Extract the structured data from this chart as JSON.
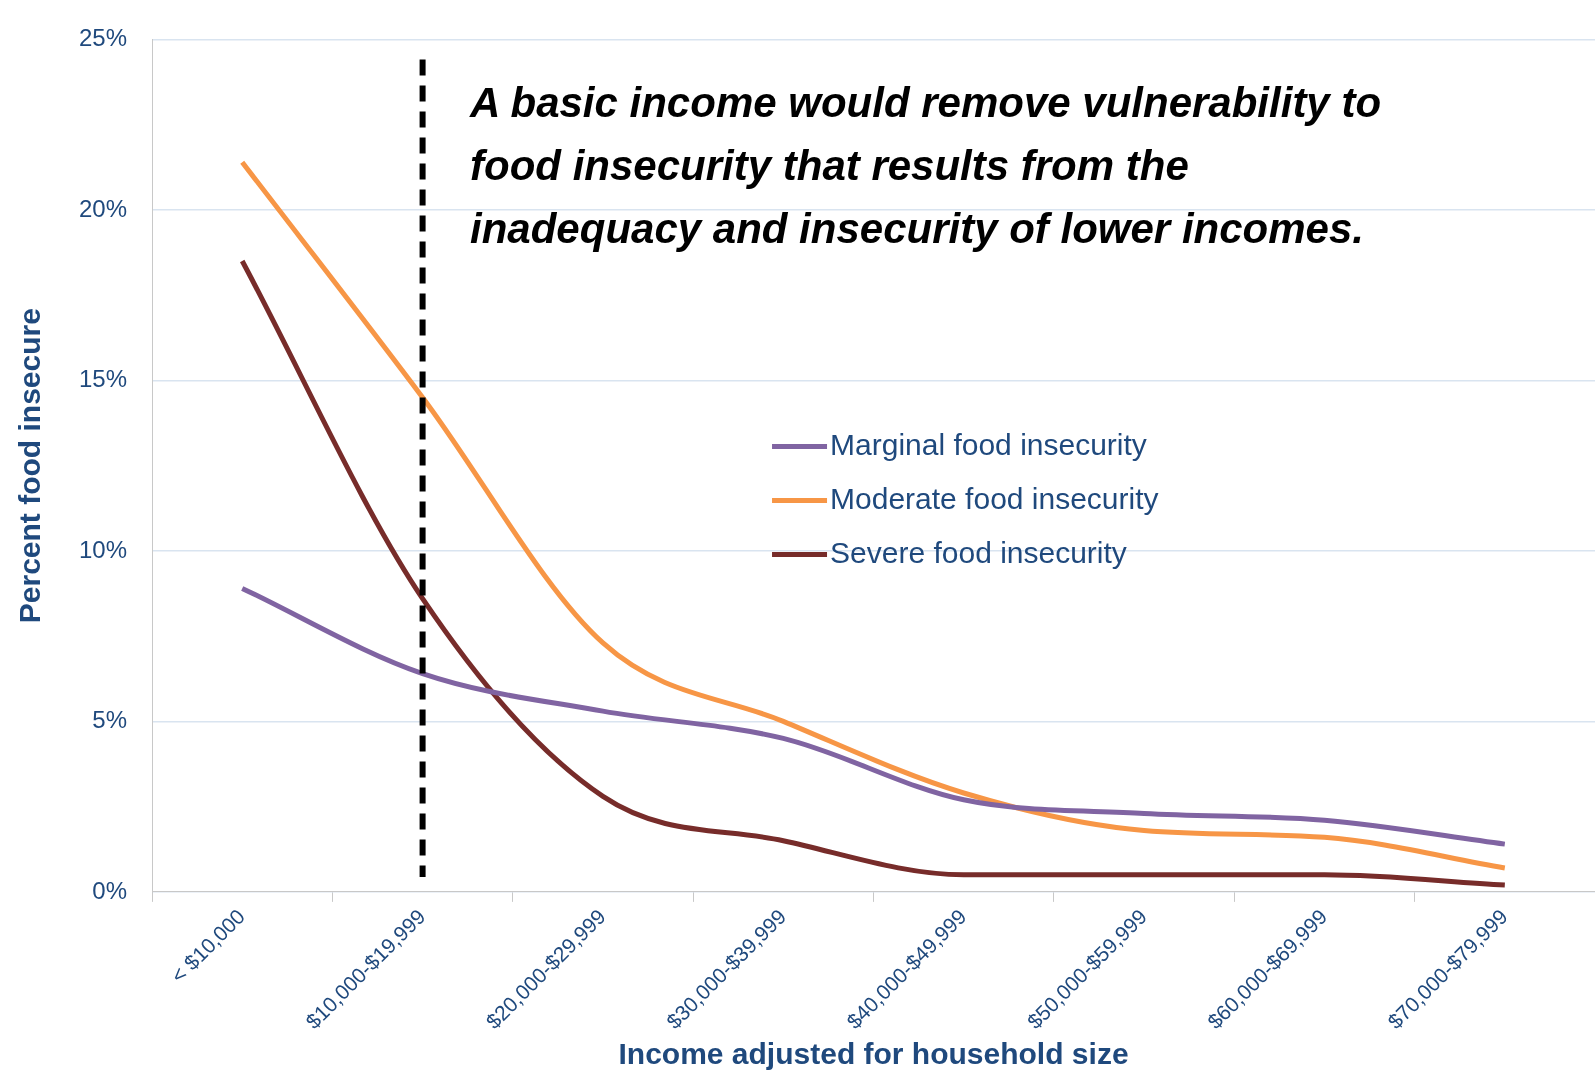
{
  "chart_data": {
    "type": "line",
    "xlabel": "Income adjusted for household size",
    "ylabel": "Percent food insecure",
    "categories": [
      "< $10,000",
      "$10,000-$19,999",
      "$20,000-$29,999",
      "$30,000-$39,999",
      "$40,000-$49,999",
      "$50,000-$59,999",
      "$60,000-$69,999",
      "$70,000-$79,999"
    ],
    "series": [
      {
        "name": "Marginal food insecurity",
        "color": "#8064a2",
        "values": [
          8.9,
          6.4,
          5.3,
          4.5,
          2.7,
          2.3,
          2.1,
          1.4
        ]
      },
      {
        "name": "Moderate food insecurity",
        "color": "#f79646",
        "values": [
          21.4,
          14.5,
          7.3,
          5.0,
          2.9,
          1.8,
          1.6,
          0.7
        ]
      },
      {
        "name": "Severe food insecurity",
        "color": "#772c2a",
        "values": [
          18.5,
          8.6,
          2.8,
          1.5,
          0.5,
          0.5,
          0.5,
          0.2
        ]
      }
    ],
    "ylim": [
      0,
      25
    ],
    "yticks": [
      {
        "value": 0,
        "label": "0%"
      },
      {
        "value": 5,
        "label": "5%"
      },
      {
        "value": 10,
        "label": "10%"
      },
      {
        "value": 15,
        "label": "15%"
      },
      {
        "value": 20,
        "label": "20%"
      },
      {
        "value": 25,
        "label": "25%"
      }
    ],
    "grid": "y",
    "legend": "center",
    "marker": "none",
    "line_style": "solid",
    "ref_lines": [
      {
        "axis": "x",
        "value": "$10,000-$19,999",
        "color": "#000000",
        "line_style": "dashed"
      }
    ],
    "annotations": [
      "A basic income would remove vulnerability to food insecurity that results from the inadequacy and insecurity of lower incomes."
    ]
  }
}
